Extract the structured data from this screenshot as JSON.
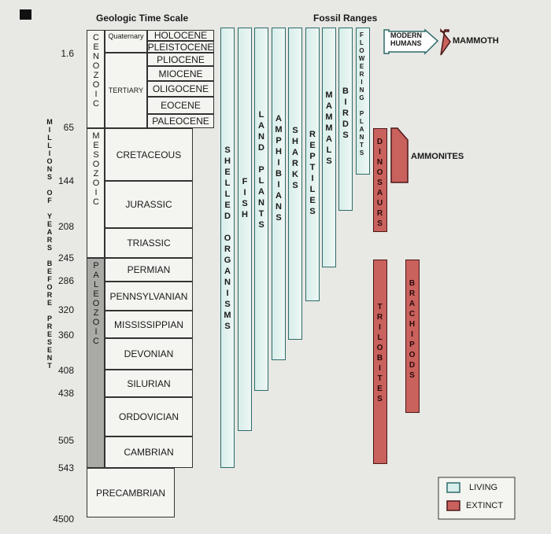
{
  "header": {
    "left_title": "Geologic Time Scale",
    "right_title": "Fossil Ranges"
  },
  "axis_label": "MILLIONS OF YEARS BEFORE PRESENT",
  "time_labels": [
    1.6,
    65,
    144,
    208,
    245,
    286,
    320,
    360,
    408,
    438,
    505,
    543,
    4500
  ],
  "eras": [
    "CENOZOIC",
    "MESOZOIC",
    "PALEOZOIC"
  ],
  "subdivisions": [
    "Quaternary",
    "TERTIARY"
  ],
  "epochs": [
    "HOLOCENE",
    "PLEISTOCENE",
    "PLIOCENE",
    "MIOCENE",
    "OLIGOCENE",
    "EOCENE",
    "PALEOCENE"
  ],
  "periods": [
    "CRETACEOUS",
    "JURASSIC",
    "TRIASSIC",
    "PERMIAN",
    "PENNSYLVANIAN",
    "MISSISSIPPIAN",
    "DEVONIAN",
    "SILURIAN",
    "ORDOVICIAN",
    "CAMBRIAN",
    "PRECAMBRIAN"
  ],
  "fossils": {
    "living": [
      "SHELLED ORGANISMS",
      "FISH",
      "LAND PLANTS",
      "AMPHIBIANS",
      "SHARKS",
      "REPTILES",
      "MAMMALS",
      "BIRDS",
      "FLOWERING PLANTS"
    ],
    "extinct": [
      "DINOSAURS",
      "TRILOBITES",
      "BRACHIPODS"
    ],
    "humans": "MODERN HUMANS",
    "mammoth": "MAMMOTH",
    "ammonites": "AMMONITES"
  },
  "legend": [
    "LIVING",
    "EXTINCT"
  ]
}
